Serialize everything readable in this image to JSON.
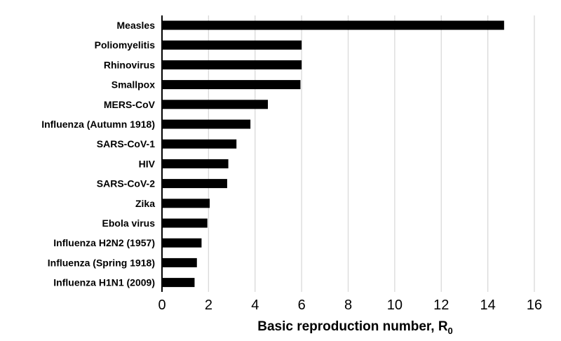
{
  "chart_data": {
    "type": "bar",
    "orientation": "horizontal",
    "categories": [
      "Measles",
      "Poliomyelitis",
      "Rhinovirus",
      "Smallpox",
      "MERS-CoV",
      "Influenza (Autumn 1918)",
      "SARS-CoV-1",
      "HIV",
      "SARS-CoV-2",
      "Zika",
      "Ebola virus",
      "Influenza H2N2 (1957)",
      "Influenza (Spring 1918)",
      "Influenza H1N1 (2009)"
    ],
    "values": [
      14.7,
      6.0,
      6.0,
      5.95,
      4.55,
      3.8,
      3.2,
      2.85,
      2.8,
      2.05,
      1.95,
      1.7,
      1.5,
      1.4
    ],
    "title": "",
    "xlabel": "Basic reproduction number, R",
    "xlabel_subscript": "0",
    "ylabel": "",
    "xlim": [
      0,
      16
    ],
    "xticks": [
      "0",
      "2",
      "4",
      "6",
      "8",
      "10",
      "12",
      "14",
      "16"
    ],
    "grid": "vertical",
    "legend": "none",
    "colors": {
      "bar": "#000000",
      "grid": "#d9d9d9",
      "axis": "#000000"
    }
  }
}
